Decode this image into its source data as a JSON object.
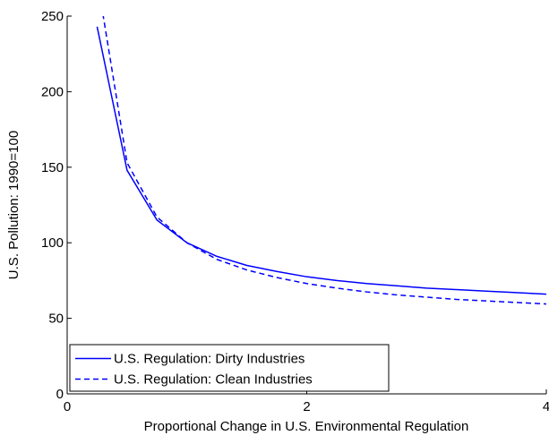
{
  "chart_data": {
    "type": "line",
    "xlabel": "Proportional Change in U.S. Environmental Regulation",
    "ylabel": "U.S. Pollution: 1990=100",
    "x": [
      0.25,
      0.5,
      0.75,
      1,
      1.25,
      1.5,
      1.75,
      2,
      2.25,
      2.5,
      2.75,
      3,
      3.25,
      3.5,
      3.75,
      4
    ],
    "series": [
      {
        "name": "U.S. Regulation: Dirty Industries",
        "color": "#0000ff",
        "line_style": "solid",
        "values": [
          243,
          148,
          115,
          100,
          91,
          85,
          81,
          77.5,
          75,
          73,
          71.5,
          70,
          69,
          68,
          67,
          66
        ]
      },
      {
        "name": "U.S. Regulation: Clean Industries",
        "color": "#0000ff",
        "line_style": "dashed",
        "values": [
          275,
          153,
          117,
          100,
          89,
          82,
          77,
          73,
          70,
          67.5,
          65.5,
          64,
          62.5,
          61.5,
          60.5,
          59.5
        ]
      }
    ],
    "xlim": [
      0,
      4
    ],
    "xticks": [
      0,
      2,
      4
    ],
    "ylim": [
      0,
      250
    ],
    "yticks": [
      0,
      50,
      100,
      150,
      200,
      250
    ],
    "legend": "lower left",
    "grid": false
  }
}
